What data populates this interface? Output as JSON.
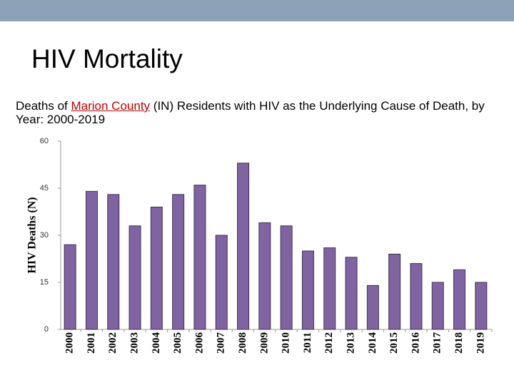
{
  "chart_data": {
    "type": "bar",
    "title": "HIV Mortality",
    "subtitle": {
      "before": "Deaths of",
      "highlight": "Marion County",
      "after": "(IN) Residents with HIV as the Underlying Cause of Death, by Year: 2000-2019"
    },
    "ylabel": "HIV Deaths (N)",
    "categories": [
      "2000",
      "2001",
      "2002",
      "2003",
      "2004",
      "2005",
      "2006",
      "2007",
      "2008",
      "2009",
      "2010",
      "2011",
      "2012",
      "2013",
      "2014",
      "2015",
      "2016",
      "2017",
      "2018",
      "2019"
    ],
    "values": [
      27,
      44,
      43,
      33,
      39,
      43,
      46,
      30,
      53,
      34,
      33,
      25,
      26,
      23,
      14,
      24,
      21,
      15,
      19,
      15
    ],
    "color": "#8064a2",
    "ylim": [
      0,
      60
    ],
    "yticks": [
      0,
      15,
      30,
      45,
      60
    ],
    "grid": false
  }
}
